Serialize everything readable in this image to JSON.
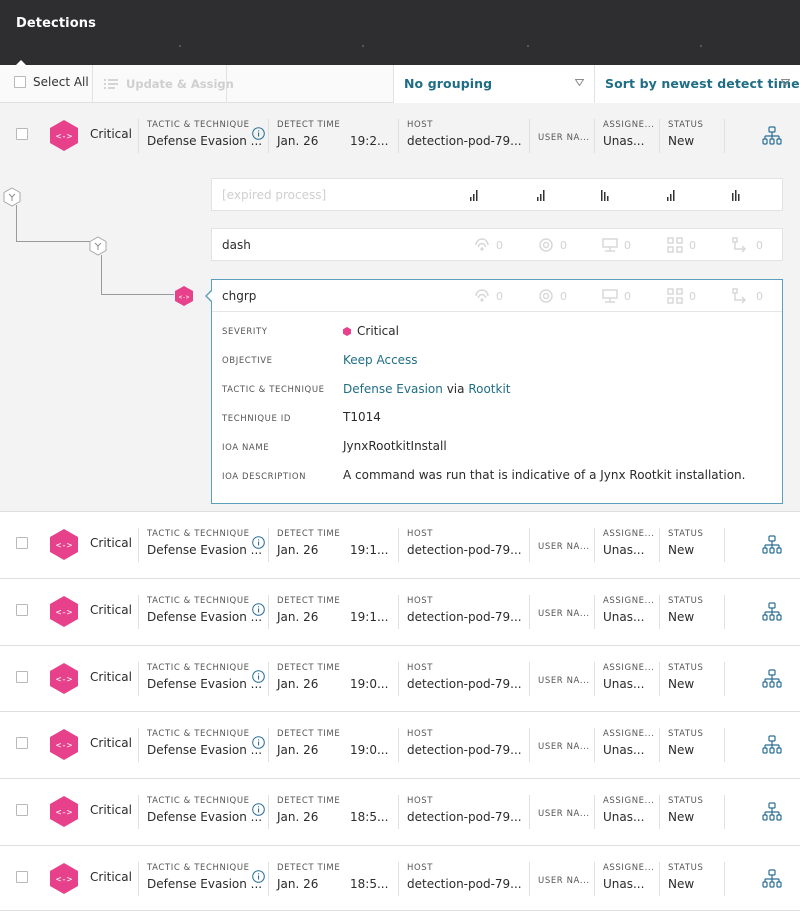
{
  "header": {
    "title": "Detections"
  },
  "toolbar": {
    "select_all_label": "Select All",
    "update_assign_label": "Update & Assign",
    "grouping_value": "No grouping",
    "sort_value": "Sort by newest detect time"
  },
  "columns": {
    "tactic": "TACTIC & TECHNIQUE",
    "detect_time": "DETECT TIME",
    "host": "HOST",
    "user_name": "USER NA...",
    "assignee": "ASSIGNE...",
    "status": "STATUS"
  },
  "rows": [
    {
      "severity": "Critical",
      "tactic": "Defense Evasion ...",
      "date": "Jan. 26",
      "time": "19:2...",
      "host": "detection-pod-79...",
      "assignee": "Unas...",
      "status": "New"
    },
    {
      "severity": "Critical",
      "tactic": "Defense Evasion ...",
      "date": "Jan. 26",
      "time": "19:1...",
      "host": "detection-pod-79...",
      "assignee": "Unas...",
      "status": "New"
    },
    {
      "severity": "Critical",
      "tactic": "Defense Evasion ...",
      "date": "Jan. 26",
      "time": "19:1...",
      "host": "detection-pod-79...",
      "assignee": "Unas...",
      "status": "New"
    },
    {
      "severity": "Critical",
      "tactic": "Defense Evasion ...",
      "date": "Jan. 26",
      "time": "19:0...",
      "host": "detection-pod-79...",
      "assignee": "Unas...",
      "status": "New"
    },
    {
      "severity": "Critical",
      "tactic": "Defense Evasion ...",
      "date": "Jan. 26",
      "time": "19:0...",
      "host": "detection-pod-79...",
      "assignee": "Unas...",
      "status": "New"
    },
    {
      "severity": "Critical",
      "tactic": "Defense Evasion ...",
      "date": "Jan. 26",
      "time": "18:5...",
      "host": "detection-pod-79...",
      "assignee": "Unas...",
      "status": "New"
    },
    {
      "severity": "Critical",
      "tactic": "Defense Evasion ...",
      "date": "Jan. 26",
      "time": "18:5...",
      "host": "detection-pod-79...",
      "assignee": "Unas...",
      "status": "New"
    }
  ],
  "process_tree": {
    "expired": "[expired process]",
    "parent": {
      "name": "dash",
      "stats": [
        "0",
        "0",
        "0",
        "0",
        "0"
      ]
    },
    "selected": {
      "name": "chgrp",
      "stats": [
        "0",
        "0",
        "0",
        "0",
        "0"
      ]
    }
  },
  "detail": {
    "severity_label": "SEVERITY",
    "severity_value": "Critical",
    "objective_label": "OBJECTIVE",
    "objective_value": "Keep Access",
    "tactic_label": "TACTIC & TECHNIQUE",
    "tactic_value": "Defense Evasion",
    "via": "via",
    "technique_value": "Rootkit",
    "technique_id_label": "TECHNIQUE ID",
    "technique_id_value": "T1014",
    "ioa_name_label": "IOA NAME",
    "ioa_name_value": "JynxRootkitInstall",
    "ioa_desc_label": "IOA DESCRIPTION",
    "ioa_desc_value": "A command was run that is indicative of a Jynx Rootkit installation."
  },
  "colors": {
    "critical": "#e8418b",
    "link": "#1f6e86",
    "header_bg": "#2e2e30",
    "selected_border": "#5c9fbd"
  }
}
